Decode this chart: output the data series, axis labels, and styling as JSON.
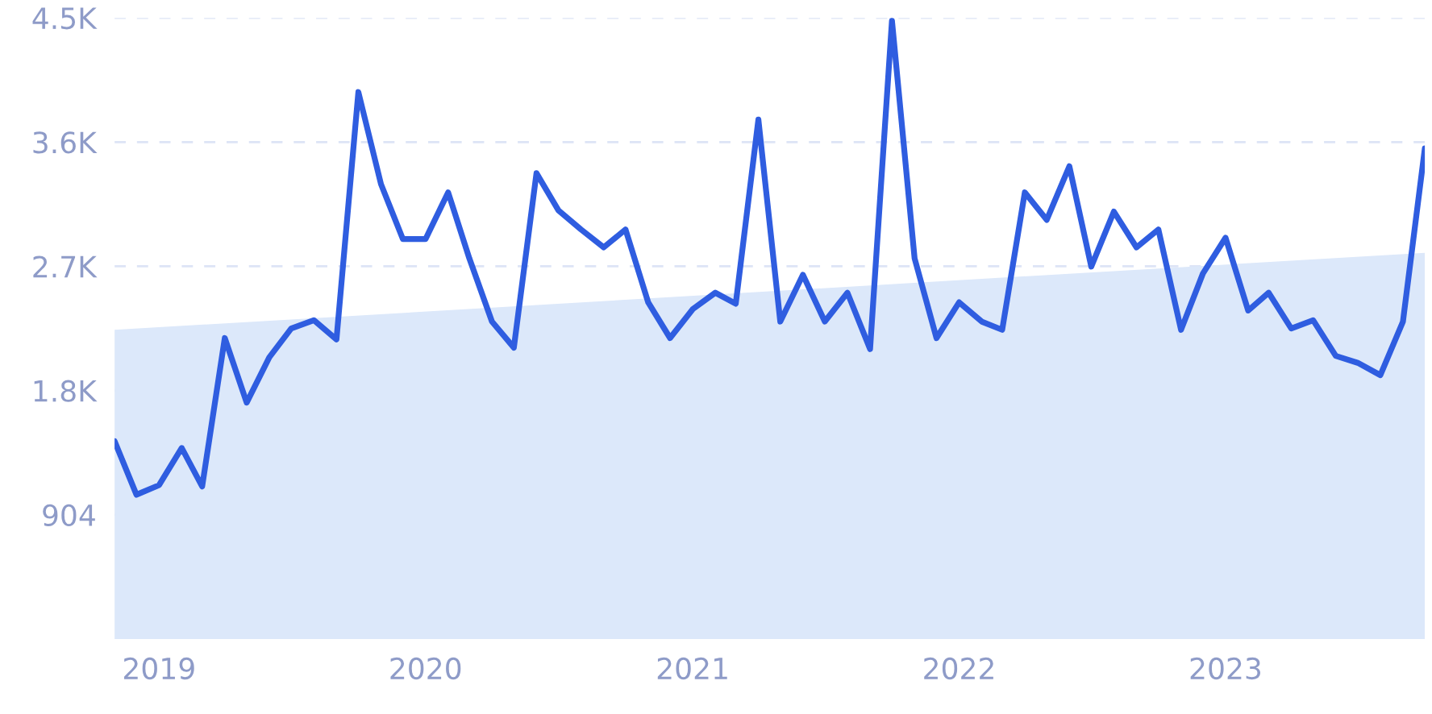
{
  "chart_data": {
    "type": "line",
    "x": [
      "2018-11",
      "2018-12",
      "2019-01",
      "2019-02",
      "2019-03",
      "2019-04",
      "2019-05",
      "2019-06",
      "2019-07",
      "2019-08",
      "2019-09",
      "2019-10",
      "2019-11",
      "2019-12",
      "2020-01",
      "2020-02",
      "2020-03",
      "2020-04",
      "2020-05",
      "2020-06",
      "2020-07",
      "2020-08",
      "2020-09",
      "2020-10",
      "2020-11",
      "2020-12",
      "2021-01",
      "2021-02",
      "2021-03",
      "2021-04",
      "2021-05",
      "2021-06",
      "2021-07",
      "2021-08",
      "2021-09",
      "2021-10",
      "2021-11",
      "2021-12",
      "2022-01",
      "2022-02",
      "2022-03",
      "2022-04",
      "2022-05",
      "2022-06",
      "2022-07",
      "2022-08",
      "2022-09",
      "2022-10",
      "2022-11",
      "2022-12",
      "2023-01",
      "2023-02",
      "2023-03",
      "2023-04",
      "2023-05",
      "2023-06",
      "2023-07",
      "2023-08",
      "2023-09",
      "2023-10"
    ],
    "series": [
      {
        "type": "area",
        "color": "#dce8fa",
        "x": [
          "2018-11",
          "2023-10"
        ],
        "values": [
          2250,
          2810
        ]
      },
      {
        "color": "#2f5de0",
        "values": [
          1440,
          1050,
          1120,
          1390,
          1110,
          2190,
          1720,
          2050,
          2260,
          2320,
          2180,
          3980,
          3310,
          2910,
          2910,
          3250,
          2770,
          2310,
          2120,
          3390,
          3120,
          2980,
          2850,
          2980,
          2450,
          2190,
          2400,
          2520,
          2440,
          3780,
          2310,
          2650,
          2310,
          2520,
          2110,
          4500,
          2770,
          2190,
          2450,
          2310,
          2250,
          3250,
          3050,
          3440,
          2710,
          3110,
          2850,
          2980,
          2250,
          2660,
          2920,
          2390,
          2520,
          2260,
          2320,
          2060,
          2010,
          1920,
          2310,
          3570
        ]
      }
    ],
    "xlim": [
      "2018-11",
      "2023-10"
    ],
    "xticks": [
      {
        "value": "2019-01",
        "label": "2019"
      },
      {
        "value": "2020-01",
        "label": "2020"
      },
      {
        "value": "2021-01",
        "label": "2021"
      },
      {
        "value": "2022-01",
        "label": "2022"
      },
      {
        "value": "2023-01",
        "label": "2023"
      }
    ],
    "ylim": [
      0,
      4520
    ],
    "yticks": [
      904,
      {
        "value": 1808,
        "label": "1.8K"
      },
      {
        "value": 2712,
        "label": "2.7K"
      },
      {
        "value": 3616,
        "label": "3.6K"
      },
      {
        "value": 4520,
        "label": "4.5K"
      }
    ],
    "grid": "y",
    "line_style": "solid",
    "marker": "none"
  }
}
